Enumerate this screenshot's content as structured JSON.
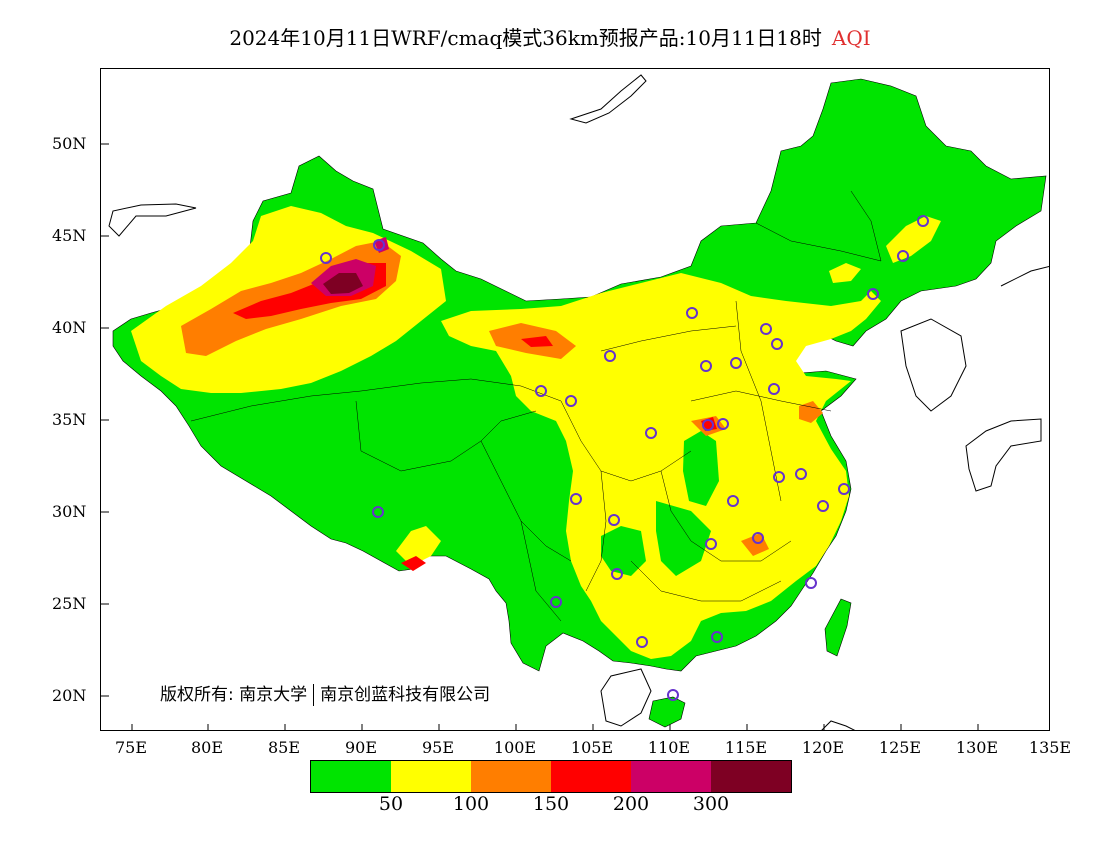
{
  "title": {
    "main": "2024年10月11日WRF/cmaq模式36km预报产品:10月11日18时",
    "product": "AQI"
  },
  "map": {
    "lat_ticks": [
      "50N",
      "45N",
      "40N",
      "35N",
      "30N",
      "25N",
      "20N"
    ],
    "lon_ticks": [
      "75E",
      "80E",
      "85E",
      "90E",
      "95E",
      "100E",
      "105E",
      "110E",
      "115E",
      "120E",
      "125E",
      "130E",
      "135E"
    ],
    "copyright_left": "版权所有: 南京大学",
    "copyright_right": "南京创蓝科技有限公司"
  },
  "legend": {
    "labels": [
      "50",
      "100",
      "150",
      "200",
      "300"
    ],
    "colors": [
      "#00e400",
      "#ffff00",
      "#ff7e00",
      "#ff0000",
      "#cc0066",
      "#7e0023"
    ]
  },
  "aqi_colors": {
    "good": "#00e400",
    "moderate": "#ffff00",
    "unhealthy_sensitive": "#ff7e00",
    "unhealthy": "#ff0000",
    "very_unhealthy": "#cc0066",
    "hazardous": "#7e0023",
    "station_marker": "#6633cc"
  }
}
